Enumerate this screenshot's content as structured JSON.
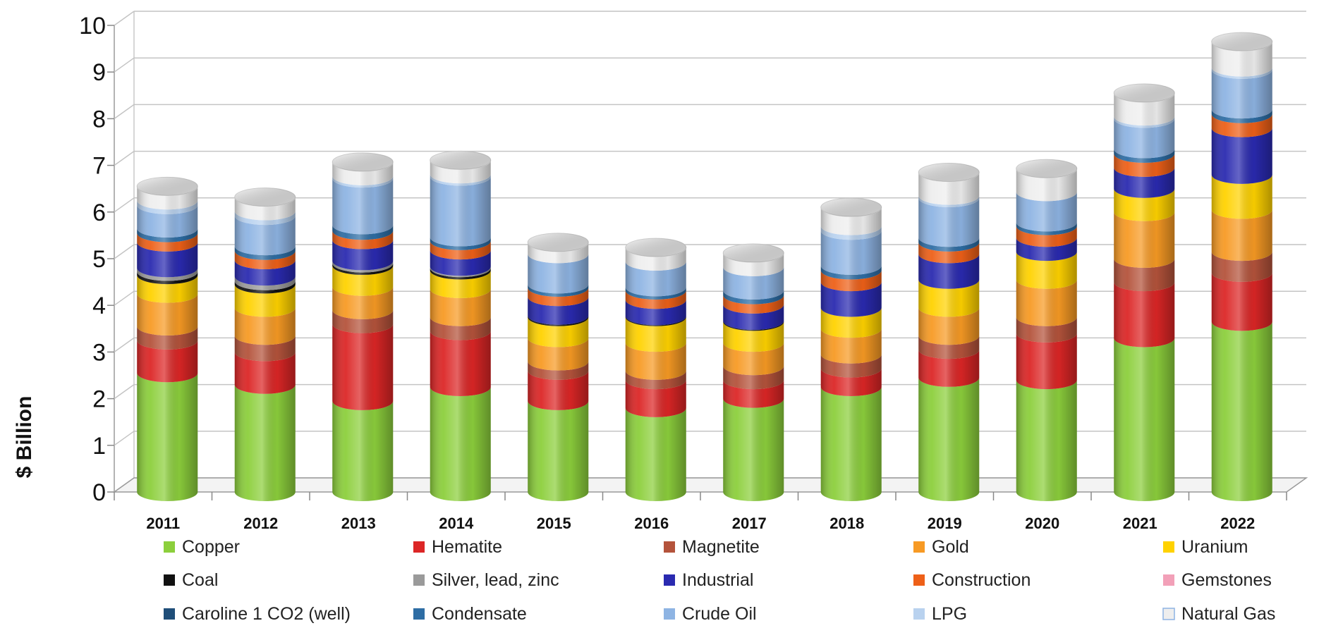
{
  "chart_data": {
    "type": "bar",
    "stacked": true,
    "style": "3d-cylinder",
    "title": "",
    "xlabel": "",
    "ylabel": "$ Billion",
    "ylim": [
      0,
      10
    ],
    "yticks": [
      "0",
      "1",
      "2",
      "3",
      "4",
      "5",
      "6",
      "7",
      "8",
      "9",
      "10"
    ],
    "grid": true,
    "legend_position": "bottom",
    "categories": [
      "2011",
      "2012",
      "2013",
      "2014",
      "2015",
      "2016",
      "2017",
      "2018",
      "2019",
      "2020",
      "2021",
      "2022"
    ],
    "series": [
      {
        "name": "Copper",
        "color": "#8ccf3c",
        "values": [
          2.55,
          2.3,
          1.95,
          2.25,
          1.95,
          1.8,
          2.0,
          2.25,
          2.45,
          2.4,
          3.3,
          3.65
        ]
      },
      {
        "name": "Hematite",
        "color": "#dc2626",
        "values": [
          0.7,
          0.7,
          1.65,
          1.2,
          0.65,
          0.6,
          0.4,
          0.4,
          0.6,
          1.0,
          1.2,
          1.05
        ]
      },
      {
        "name": "Magnetite",
        "color": "#b4533b",
        "values": [
          0.3,
          0.35,
          0.3,
          0.3,
          0.2,
          0.2,
          0.3,
          0.3,
          0.3,
          0.35,
          0.5,
          0.45
        ]
      },
      {
        "name": "Gold",
        "color": "#f79a24",
        "values": [
          0.7,
          0.6,
          0.5,
          0.6,
          0.5,
          0.6,
          0.5,
          0.55,
          0.6,
          0.8,
          1.0,
          0.9
        ]
      },
      {
        "name": "Uranium",
        "color": "#ffd200",
        "values": [
          0.4,
          0.5,
          0.45,
          0.4,
          0.45,
          0.55,
          0.45,
          0.45,
          0.6,
          0.6,
          0.5,
          0.75
        ]
      },
      {
        "name": "Coal",
        "color": "#111111",
        "values": [
          0.07,
          0.07,
          0.05,
          0.05,
          0.03,
          0.02,
          0.02,
          0.0,
          0.0,
          0.0,
          0.0,
          0.0
        ]
      },
      {
        "name": "Silver, lead, zinc",
        "color": "#9a9a9a",
        "values": [
          0.08,
          0.1,
          0.05,
          0.03,
          0.0,
          0.0,
          0.0,
          0.0,
          0.0,
          0.0,
          0.0,
          0.0
        ]
      },
      {
        "name": "Industrial",
        "color": "#2a2ab0",
        "values": [
          0.55,
          0.35,
          0.45,
          0.35,
          0.4,
          0.35,
          0.35,
          0.55,
          0.55,
          0.3,
          0.45,
          1.0
        ]
      },
      {
        "name": "Construction",
        "color": "#ee6018",
        "values": [
          0.2,
          0.2,
          0.2,
          0.2,
          0.2,
          0.2,
          0.2,
          0.25,
          0.25,
          0.25,
          0.3,
          0.3
        ]
      },
      {
        "name": "Gemstones",
        "color": "#f2a0b8",
        "values": [
          0.0,
          0.0,
          0.0,
          0.0,
          0.0,
          0.0,
          0.0,
          0.0,
          0.0,
          0.0,
          0.0,
          0.0
        ]
      },
      {
        "name": "Caroline 1 CO2 (well)",
        "color": "#1f4e79",
        "values": [
          0.0,
          0.0,
          0.0,
          0.0,
          0.0,
          0.0,
          0.0,
          0.0,
          0.0,
          0.0,
          0.0,
          0.0
        ]
      },
      {
        "name": "Condensate",
        "color": "#2e6da4",
        "values": [
          0.1,
          0.1,
          0.12,
          0.08,
          0.07,
          0.07,
          0.1,
          0.1,
          0.1,
          0.08,
          0.1,
          0.1
        ]
      },
      {
        "name": "Crude Oil",
        "color": "#8eb4e3",
        "values": [
          0.5,
          0.65,
          1.0,
          1.3,
          0.65,
          0.55,
          0.5,
          0.75,
          0.85,
          0.65,
          0.65,
          0.85
        ]
      },
      {
        "name": "LPG",
        "color": "#b9d2ef",
        "values": [
          0.1,
          0.1,
          0.05,
          0.05,
          0.0,
          0.0,
          0.0,
          0.1,
          0.05,
          0.0,
          0.05,
          0.05
        ]
      },
      {
        "name": "Natural Gas",
        "color": "#eeeeee",
        "values": [
          0.3,
          0.3,
          0.3,
          0.3,
          0.25,
          0.3,
          0.3,
          0.4,
          0.5,
          0.5,
          0.5,
          0.55
        ]
      }
    ]
  }
}
